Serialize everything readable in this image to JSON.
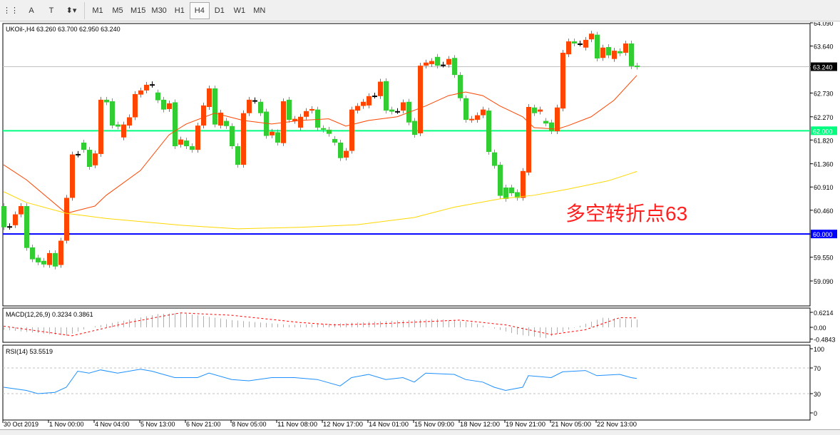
{
  "toolbar": {
    "tools": [
      {
        "name": "period-separator-icon",
        "glyph": "⋮⋮"
      },
      {
        "name": "text-tool-icon",
        "glyph": "A"
      },
      {
        "name": "text-label-icon",
        "glyph": "T"
      },
      {
        "name": "arrows-tool-icon",
        "glyph": "⬍▾"
      }
    ],
    "timeframes": [
      "M1",
      "M5",
      "M15",
      "M30",
      "H1",
      "H4",
      "D1",
      "W1",
      "MN"
    ],
    "active_timeframe": "H4"
  },
  "chart": {
    "header": "UKOil-,H4  63.260 63.700 62.950 63.240",
    "annotation": "多空转折点63",
    "colors": {
      "bull": "#ff4500",
      "bear": "#32cd32",
      "ma_fast": "#ff4500",
      "ma_slow": "#ffd700",
      "level_62": "#00ff7f",
      "level_60": "#0000ff",
      "rsi": "#1e90ff"
    }
  },
  "chart_data": [
    {
      "type": "candlestick",
      "ylim": [
        59.09,
        64.09
      ],
      "y_ticks": [
        "64.090",
        "63.640",
        "63.240",
        "62.730",
        "62.270",
        "61.820",
        "61.360",
        "60.910",
        "60.460",
        "60.000",
        "59.550",
        "59.090"
      ],
      "price_labels": {
        "current": "63.240",
        "level_62": "62.000",
        "level_60": "60.000"
      },
      "hlines": [
        62.0,
        60.0
      ],
      "x_labels": [
        "30 Oct 2019",
        "1 Nov 00:00",
        "4 Nov 04:00",
        "5 Nov 13:00",
        "6 Nov 21:00",
        "8 Nov 05:00",
        "11 Nov 08:00",
        "12 Nov 17:00",
        "14 Nov 01:00",
        "15 Nov 09:00",
        "18 Nov 12:00",
        "19 Nov 21:00",
        "21 Nov 05:00",
        "22 Nov 13:00"
      ],
      "open": [
        60.54,
        60.14,
        60.17,
        60.38,
        60.54,
        59.74,
        59.54,
        59.48,
        59.4,
        59.63,
        59.4,
        59.87,
        60.7,
        61.54,
        61.77,
        61.63,
        61.33,
        61.55,
        62.6,
        62.57,
        62.12,
        61.87,
        62.1,
        62.26,
        62.7,
        62.78,
        62.89,
        62.74,
        62.6,
        62.42,
        62.55,
        61.73,
        61.81,
        61.7,
        61.63,
        62.1,
        62.46,
        62.82,
        62.1,
        62.19,
        62.09,
        61.7,
        61.34,
        62.34,
        62.59,
        62.56,
        62.37,
        61.91,
        61.97,
        61.76,
        62.6,
        62.19,
        62.06,
        62.27,
        62.39,
        62.41,
        62.05,
        62.02,
        61.84,
        61.77,
        61.48,
        61.61,
        62.39,
        62.48,
        62.49,
        62.68,
        62.67,
        62.96,
        62.41,
        62.38,
        62.39,
        62.56,
        62.19,
        61.95,
        63.26,
        63.29,
        63.43,
        63.28,
        63.28,
        63.41,
        63.08,
        62.63,
        62.21,
        62.21,
        62.3,
        62.39,
        61.58,
        61.34,
        60.9,
        60.9,
        60.81,
        60.7,
        61.19,
        62.45,
        62.37,
        62.19,
        62.16,
        61.99,
        62.43,
        63.48,
        63.73,
        63.69,
        63.61,
        63.77,
        63.86,
        63.41,
        63.62,
        63.39,
        63.54,
        63.51,
        63.69,
        63.26
      ],
      "close": [
        60.13,
        60.15,
        60.38,
        60.54,
        59.73,
        59.51,
        59.45,
        59.41,
        59.63,
        59.37,
        59.87,
        60.7,
        61.54,
        61.55,
        61.63,
        61.3,
        61.56,
        62.6,
        62.55,
        62.1,
        62.08,
        62.12,
        62.26,
        62.71,
        62.78,
        62.89,
        62.9,
        62.59,
        62.41,
        62.53,
        61.7,
        61.83,
        61.7,
        61.63,
        62.1,
        62.49,
        62.82,
        62.12,
        62.35,
        62.09,
        61.7,
        61.34,
        62.34,
        62.6,
        62.58,
        62.34,
        61.9,
        61.98,
        61.77,
        62.57,
        62.21,
        62.23,
        62.27,
        62.38,
        62.42,
        62.06,
        62.02,
        61.94,
        61.77,
        61.47,
        61.61,
        62.41,
        62.48,
        62.56,
        62.67,
        62.68,
        62.95,
        62.39,
        62.37,
        62.38,
        62.55,
        62.16,
        61.92,
        63.26,
        63.32,
        63.35,
        63.26,
        63.28,
        63.39,
        63.08,
        62.63,
        62.21,
        62.23,
        62.3,
        62.41,
        61.59,
        61.32,
        60.74,
        60.68,
        60.79,
        60.7,
        61.22,
        62.46,
        62.34,
        62.41,
        62.14,
        61.99,
        62.45,
        63.51,
        63.73,
        63.69,
        63.69,
        63.76,
        63.88,
        63.4,
        63.61,
        63.46,
        63.55,
        63.5,
        63.69,
        63.25,
        63.24
      ],
      "ma_fast": [
        [
          0,
          61.34
        ],
        [
          4,
          61.05
        ],
        [
          11,
          60.4
        ],
        [
          16,
          60.54
        ],
        [
          18,
          60.75
        ],
        [
          24,
          61.23
        ],
        [
          29,
          61.92
        ],
        [
          32,
          62.13
        ],
        [
          37,
          62.34
        ],
        [
          42,
          62.2
        ],
        [
          47,
          62.13
        ],
        [
          52,
          62.2
        ],
        [
          57,
          62.23
        ],
        [
          60,
          62.09
        ],
        [
          64,
          62.2
        ],
        [
          69,
          62.27
        ],
        [
          74,
          62.48
        ],
        [
          78,
          62.68
        ],
        [
          81,
          62.75
        ],
        [
          84,
          62.68
        ],
        [
          87,
          62.48
        ],
        [
          91,
          62.27
        ],
        [
          93,
          62.06
        ],
        [
          97,
          62.03
        ],
        [
          99,
          62.1
        ],
        [
          103,
          62.27
        ],
        [
          107,
          62.59
        ],
        [
          111,
          63.07
        ]
      ],
      "ma_slow": [
        [
          0,
          60.82
        ],
        [
          4,
          60.61
        ],
        [
          11,
          60.4
        ],
        [
          18,
          60.3
        ],
        [
          31,
          60.17
        ],
        [
          41,
          60.1
        ],
        [
          52,
          60.13
        ],
        [
          62,
          60.18
        ],
        [
          72,
          60.32
        ],
        [
          79,
          60.52
        ],
        [
          87,
          60.68
        ],
        [
          93,
          60.75
        ],
        [
          99,
          60.87
        ],
        [
          106,
          61.03
        ],
        [
          111,
          61.21
        ]
      ]
    },
    {
      "type": "bar",
      "title": "MACD(12,26,9) 0.3234 0.3861",
      "y_ticks": [
        "0.6214",
        "0.00",
        "-0.4843"
      ],
      "ylim": [
        -0.4843,
        0.6214
      ],
      "histogram": [
        [
          0,
          -0.1
        ],
        [
          11,
          -0.35
        ],
        [
          15,
          0
        ],
        [
          27,
          0.55
        ],
        [
          31,
          0.6
        ],
        [
          40,
          0.3
        ],
        [
          50,
          0.1
        ],
        [
          58,
          0.15
        ],
        [
          66,
          0.25
        ],
        [
          76,
          0.35
        ],
        [
          82,
          0.2
        ],
        [
          90,
          -0.3
        ],
        [
          95,
          -0.45
        ],
        [
          99,
          -0.1
        ],
        [
          105,
          0.4
        ],
        [
          111,
          0.32
        ]
      ],
      "signal": [
        [
          0,
          0.05
        ],
        [
          12,
          -0.35
        ],
        [
          22,
          0.2
        ],
        [
          31,
          0.6
        ],
        [
          40,
          0.5
        ],
        [
          52,
          0.2
        ],
        [
          58,
          0.1
        ],
        [
          66,
          0.15
        ],
        [
          80,
          0.3
        ],
        [
          88,
          0.1
        ],
        [
          96,
          -0.3
        ],
        [
          102,
          -0.1
        ],
        [
          108,
          0.4
        ],
        [
          111,
          0.39
        ]
      ]
    },
    {
      "type": "line",
      "title": "RSI(14) 53.5519",
      "y_ticks": [
        "100",
        "70",
        "30",
        "0"
      ],
      "ylim": [
        0,
        100
      ],
      "levels": [
        70,
        30
      ],
      "values": [
        [
          0,
          40
        ],
        [
          4,
          35
        ],
        [
          6,
          30
        ],
        [
          9,
          32
        ],
        [
          11,
          40
        ],
        [
          13,
          65
        ],
        [
          15,
          62
        ],
        [
          17,
          67
        ],
        [
          20,
          62
        ],
        [
          24,
          68
        ],
        [
          26,
          65
        ],
        [
          30,
          55
        ],
        [
          34,
          55
        ],
        [
          36,
          62
        ],
        [
          40,
          52
        ],
        [
          43,
          50
        ],
        [
          47,
          55
        ],
        [
          51,
          55
        ],
        [
          55,
          52
        ],
        [
          59,
          42
        ],
        [
          61,
          55
        ],
        [
          64,
          60
        ],
        [
          67,
          52
        ],
        [
          70,
          55
        ],
        [
          72,
          48
        ],
        [
          74,
          62
        ],
        [
          79,
          60
        ],
        [
          81,
          52
        ],
        [
          84,
          48
        ],
        [
          86,
          40
        ],
        [
          88,
          35
        ],
        [
          91,
          40
        ],
        [
          92,
          58
        ],
        [
          96,
          55
        ],
        [
          98,
          64
        ],
        [
          102,
          66
        ],
        [
          104,
          58
        ],
        [
          108,
          60
        ],
        [
          110,
          55
        ],
        [
          111,
          53.55
        ]
      ]
    }
  ]
}
